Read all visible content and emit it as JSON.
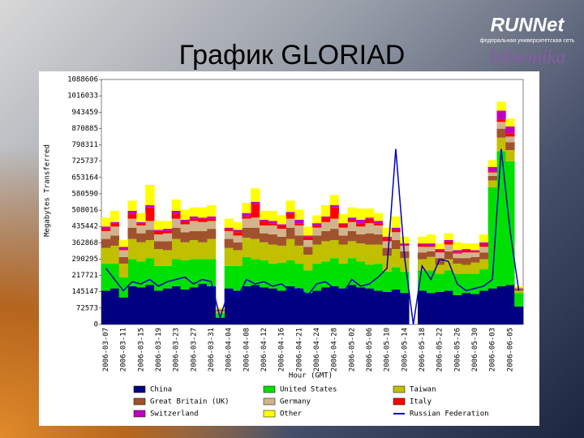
{
  "title": "График GLORIAD",
  "logo": {
    "name": "RUNNet",
    "tagline": "федеральная университетская сеть",
    "partner": "Informika"
  },
  "chart_data": {
    "type": "stacked-area",
    "ylabel": "Megabytes Transferred",
    "xlabel": "Hour (GMT)",
    "ylim": [
      0,
      1088606
    ],
    "yticks": [
      0,
      72573,
      145147,
      217721,
      290295,
      362868,
      435442,
      508016,
      580590,
      653164,
      725737,
      798311,
      870885,
      943459,
      1016033,
      1088606
    ],
    "categories": [
      "2006-03-07",
      null,
      "2006-03-11",
      null,
      "2006-03-15",
      null,
      "2006-03-19",
      null,
      "2006-03-23",
      null,
      "2006-03-27",
      null,
      "2006-03-31",
      null,
      "2006-04-04",
      null,
      "2006-04-08",
      null,
      "2006-04-12",
      null,
      "2006-04-16",
      null,
      "2006-04-21",
      null,
      "2006-04-24",
      null,
      "2006-04-28",
      null,
      "2006-05-02",
      null,
      "2006-05-06",
      null,
      "2006-05-10",
      null,
      "2006-05-14",
      null,
      "2006-05-18",
      null,
      "2006-05-22",
      null,
      "2006-05-26",
      null,
      "2006-05-30",
      null,
      "2006-06-03",
      null,
      "2006-06-05",
      null
    ],
    "series": [
      {
        "name": "China",
        "color": "#000080",
        "values": [
          150000,
          160000,
          120000,
          170000,
          165000,
          175000,
          150000,
          160000,
          170000,
          155000,
          165000,
          180000,
          170000,
          30000,
          160000,
          150000,
          170000,
          175000,
          165000,
          160000,
          150000,
          170000,
          160000,
          140000,
          150000,
          165000,
          170000,
          160000,
          175000,
          165000,
          160000,
          150000,
          145000,
          155000,
          140000,
          0,
          150000,
          140000,
          145000,
          150000,
          130000,
          140000,
          135000,
          150000,
          160000,
          170000,
          175000,
          80000
        ]
      },
      {
        "name": "United States",
        "color": "#00e000",
        "values": [
          120000,
          110000,
          90000,
          120000,
          115000,
          120000,
          110000,
          100000,
          120000,
          130000,
          125000,
          110000,
          120000,
          20000,
          100000,
          110000,
          130000,
          115000,
          120000,
          110000,
          125000,
          115000,
          110000,
          100000,
          120000,
          115000,
          125000,
          110000,
          120000,
          115000,
          105000,
          120000,
          90000,
          100000,
          95000,
          0,
          90000,
          100000,
          80000,
          90000,
          95000,
          85000,
          90000,
          95000,
          450000,
          600000,
          550000,
          60000
        ]
      },
      {
        "name": "Taiwan",
        "color": "#c0c000",
        "values": [
          70000,
          80000,
          60000,
          90000,
          85000,
          80000,
          75000,
          70000,
          90000,
          80000,
          85000,
          75000,
          90000,
          10000,
          80000,
          70000,
          85000,
          90000,
          80000,
          85000,
          75000,
          95000,
          80000,
          70000,
          85000,
          90000,
          80000,
          85000,
          75000,
          80000,
          90000,
          85000,
          70000,
          80000,
          60000,
          0,
          50000,
          60000,
          40000,
          50000,
          45000,
          40000,
          50000,
          45000,
          30000,
          60000,
          50000,
          10000
        ]
      },
      {
        "name": "Great Britain (UK)",
        "color": "#a0522d",
        "values": [
          40000,
          45000,
          30000,
          50000,
          40000,
          45000,
          35000,
          40000,
          50000,
          45000,
          40000,
          50000,
          45000,
          5000,
          40000,
          35000,
          45000,
          50000,
          40000,
          45000,
          40000,
          50000,
          45000,
          35000,
          40000,
          45000,
          50000,
          40000,
          45000,
          40000,
          50000,
          45000,
          35000,
          40000,
          30000,
          0,
          30000,
          25000,
          30000,
          35000,
          25000,
          30000,
          25000,
          30000,
          20000,
          40000,
          35000,
          10000
        ]
      },
      {
        "name": "Germany",
        "color": "#d2b48c",
        "values": [
          35000,
          40000,
          30000,
          40000,
          35000,
          40000,
          30000,
          35000,
          40000,
          35000,
          45000,
          40000,
          35000,
          5000,
          35000,
          30000,
          40000,
          45000,
          35000,
          40000,
          35000,
          40000,
          45000,
          30000,
          35000,
          40000,
          45000,
          35000,
          40000,
          35000,
          45000,
          40000,
          30000,
          35000,
          25000,
          0,
          25000,
          20000,
          25000,
          30000,
          20000,
          25000,
          20000,
          25000,
          15000,
          30000,
          25000,
          5000
        ]
      },
      {
        "name": "Italy",
        "color": "#ff0000",
        "values": [
          10000,
          15000,
          5000,
          20000,
          10000,
          60000,
          15000,
          10000,
          20000,
          15000,
          10000,
          15000,
          10000,
          0,
          10000,
          15000,
          10000,
          60000,
          20000,
          10000,
          15000,
          20000,
          10000,
          15000,
          10000,
          20000,
          50000,
          15000,
          10000,
          15000,
          20000,
          10000,
          15000,
          10000,
          5000,
          0,
          10000,
          5000,
          10000,
          15000,
          5000,
          10000,
          5000,
          10000,
          5000,
          10000,
          15000,
          0
        ]
      },
      {
        "name": "Switzerland",
        "color": "#c000c0",
        "values": [
          10000,
          5000,
          10000,
          15000,
          5000,
          10000,
          5000,
          10000,
          15000,
          5000,
          10000,
          5000,
          10000,
          0,
          5000,
          10000,
          15000,
          10000,
          5000,
          10000,
          5000,
          10000,
          15000,
          5000,
          10000,
          5000,
          10000,
          5000,
          10000,
          15000,
          5000,
          10000,
          5000,
          10000,
          5000,
          0,
          5000,
          10000,
          5000,
          5000,
          10000,
          5000,
          5000,
          10000,
          20000,
          40000,
          30000,
          0
        ]
      },
      {
        "name": "Other",
        "color": "#ffff00",
        "values": [
          40000,
          50000,
          30000,
          45000,
          40000,
          90000,
          40000,
          35000,
          50000,
          45000,
          40000,
          45000,
          50000,
          5000,
          40000,
          35000,
          45000,
          60000,
          40000,
          45000,
          40000,
          50000,
          45000,
          40000,
          35000,
          50000,
          45000,
          40000,
          45000,
          50000,
          40000,
          35000,
          40000,
          50000,
          30000,
          0,
          30000,
          40000,
          25000,
          30000,
          35000,
          25000,
          30000,
          35000,
          30000,
          40000,
          35000,
          5000
        ]
      },
      {
        "name": "Russian Federation",
        "color": "#0000c0",
        "type": "line",
        "values": [
          250000,
          200000,
          150000,
          190000,
          180000,
          200000,
          170000,
          190000,
          200000,
          210000,
          180000,
          200000,
          190000,
          30000,
          150000,
          120000,
          200000,
          180000,
          190000,
          170000,
          180000,
          150000,
          160000,
          130000,
          180000,
          190000,
          160000,
          140000,
          200000,
          170000,
          180000,
          210000,
          250000,
          780000,
          300000,
          0,
          260000,
          200000,
          290000,
          280000,
          180000,
          150000,
          160000,
          170000,
          200000,
          780000,
          420000,
          150000
        ]
      }
    ]
  }
}
